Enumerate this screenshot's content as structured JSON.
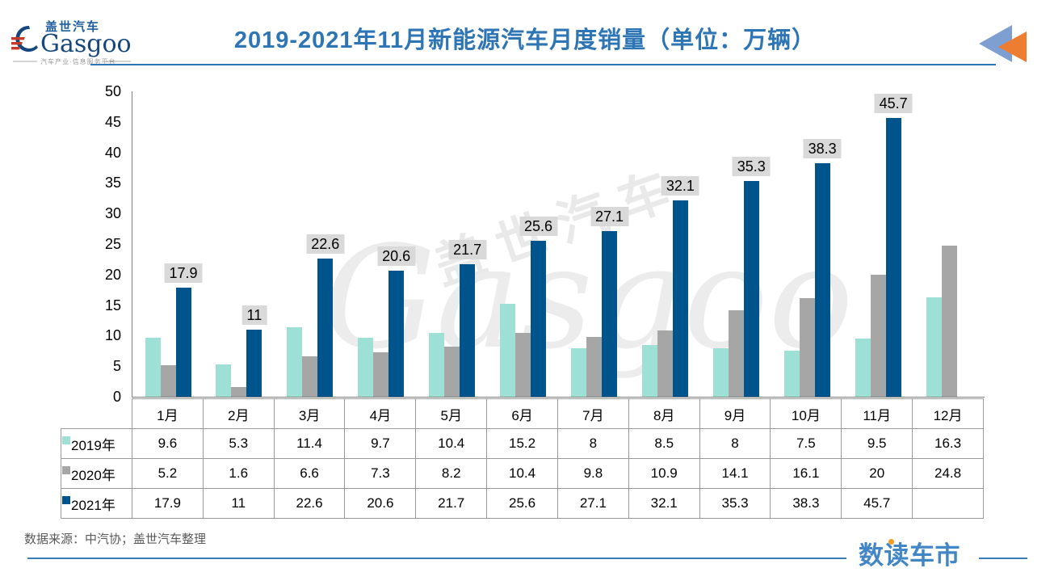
{
  "header": {
    "logo": {
      "cn": "盖世汽车",
      "en": "Gasgoo",
      "tagline": "汽车产业·信息服务平台"
    },
    "title": "2019-2021年11月新能源汽车月度销量（单位：万辆）"
  },
  "watermark": {
    "cn": "盖世汽车",
    "en": "Gasgoo"
  },
  "chart_data": {
    "type": "bar",
    "title": "2019-2021年11月新能源汽车月度销量（单位：万辆）",
    "unit": "万辆",
    "categories": [
      "1月",
      "2月",
      "3月",
      "4月",
      "5月",
      "6月",
      "7月",
      "8月",
      "9月",
      "10月",
      "11月",
      "12月"
    ],
    "series": [
      {
        "name": "2019年",
        "color": "#9ee0d6",
        "values": [
          9.6,
          5.3,
          11.4,
          9.7,
          10.4,
          15.2,
          8,
          8.5,
          8,
          7.5,
          9.5,
          16.3
        ]
      },
      {
        "name": "2020年",
        "color": "#a6a6a6",
        "values": [
          5.2,
          1.6,
          6.6,
          7.3,
          8.2,
          10.4,
          9.8,
          10.9,
          14.1,
          16.1,
          20,
          24.8
        ]
      },
      {
        "name": "2021年",
        "color": "#00548c",
        "values": [
          17.9,
          11,
          22.6,
          20.6,
          21.7,
          25.6,
          27.1,
          32.1,
          35.3,
          38.3,
          45.7,
          null
        ]
      }
    ],
    "labeled_series": "2021年",
    "ylim": [
      0,
      50
    ],
    "ytick_step": 5,
    "grid": false,
    "legend_position": "table-row-headers",
    "data_table_shown": true
  },
  "footer": {
    "source": "数据来源：中汽协；盖世汽车整理",
    "brand": "数读车市"
  },
  "colors": {
    "title_blue": "#2e75b6",
    "bar_2019": "#9ee0d6",
    "bar_2020": "#a6a6a6",
    "bar_2021": "#00548c",
    "bar_label_bg": "#d9d9d9",
    "axis_gray": "#808080",
    "table_border": "#999999",
    "arrow_blue": "#7d9fd2",
    "arrow_orange": "#ed7d31",
    "brand_blue": "#4286c5",
    "brand_dot_orange": "#f59a23",
    "source_gray": "#595959"
  }
}
